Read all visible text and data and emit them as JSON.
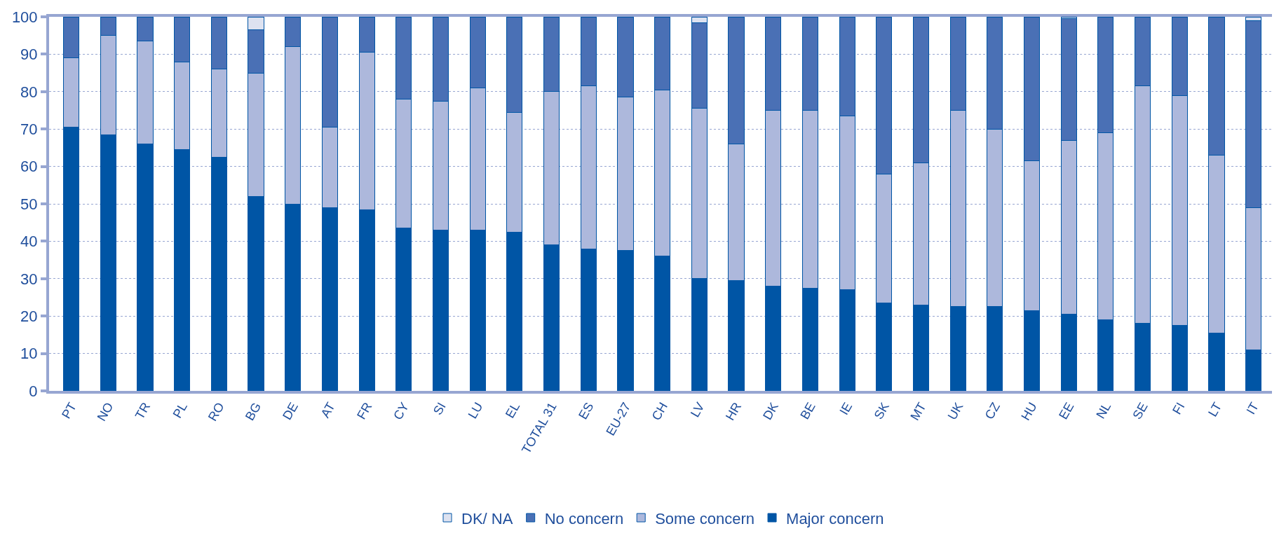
{
  "chart_data": {
    "type": "bar",
    "stacked": true,
    "categories": [
      "PT",
      "NO",
      "TR",
      "PL",
      "RO",
      "BG",
      "DE",
      "AT",
      "FR",
      "CY",
      "SI",
      "LU",
      "EL",
      "TOTAL 31",
      "ES",
      "EU-27",
      "CH",
      "LV",
      "HR",
      "DK",
      "BE",
      "IE",
      "SK",
      "MT",
      "UK",
      "CZ",
      "HU",
      "EE",
      "NL",
      "SE",
      "FI",
      "LT",
      "IT"
    ],
    "series": [
      {
        "name": "Major concern",
        "color": "#0055a5",
        "values": [
          70.5,
          68.5,
          66,
          64.5,
          62.5,
          52,
          50,
          49,
          48.5,
          43.5,
          43,
          43,
          42.5,
          39,
          38,
          37.5,
          36,
          30,
          29.5,
          28,
          27.5,
          27,
          23.5,
          23,
          22.5,
          22.5,
          21.5,
          20.5,
          19,
          18,
          17.5,
          15.5,
          11
        ]
      },
      {
        "name": "Some concern",
        "color": "#adb8dc",
        "values": [
          18.5,
          26.5,
          27.5,
          23.5,
          23.5,
          33,
          42,
          21.5,
          42,
          34.5,
          34.5,
          38,
          32,
          41,
          43.5,
          41,
          44.5,
          45.5,
          36.5,
          47,
          47.5,
          46.5,
          34.5,
          38,
          52.5,
          47.5,
          40,
          46.5,
          50,
          63.5,
          61.5,
          47.5,
          38
        ]
      },
      {
        "name": "No concern",
        "color": "#4a70b5",
        "values": [
          11,
          5,
          6.5,
          12,
          14,
          11.5,
          8,
          29.5,
          9.5,
          22,
          22.5,
          19,
          25.5,
          20,
          18.5,
          21.5,
          19.5,
          23,
          34,
          25,
          25,
          26.5,
          42,
          39,
          25,
          30,
          38.5,
          32.5,
          31,
          18.5,
          21,
          37,
          50
        ]
      },
      {
        "name": "DK/ NA",
        "color": "#dde2f0",
        "values": [
          null,
          null,
          null,
          null,
          null,
          3.5,
          null,
          null,
          null,
          null,
          null,
          null,
          null,
          null,
          null,
          null,
          null,
          1.5,
          null,
          null,
          null,
          null,
          null,
          null,
          null,
          null,
          null,
          0.5,
          null,
          null,
          null,
          null,
          1
        ]
      }
    ],
    "ylim": [
      0,
      100
    ],
    "yticks": [
      0,
      10,
      20,
      30,
      40,
      50,
      60,
      70,
      80,
      90,
      100
    ],
    "grid": "y",
    "legend": "bottom"
  }
}
